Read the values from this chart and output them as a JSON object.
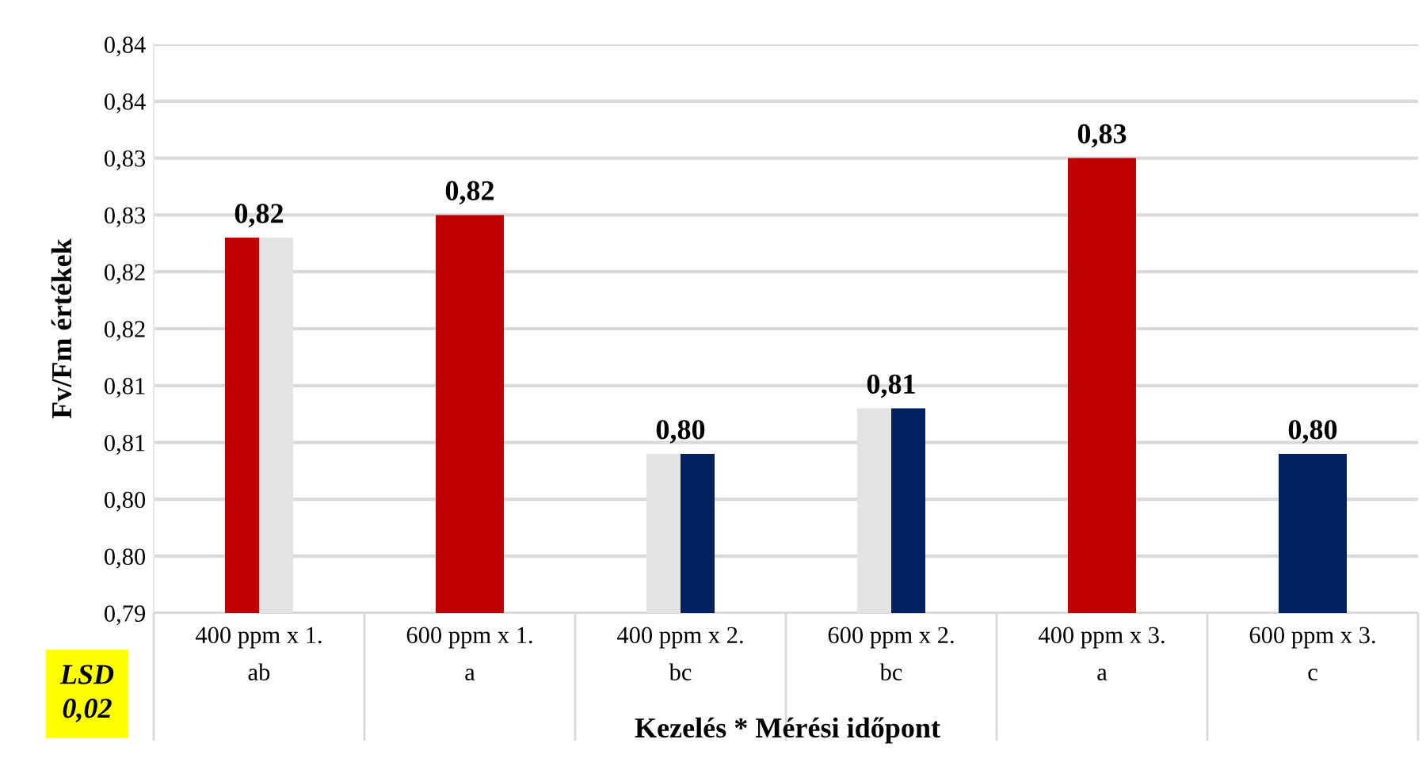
{
  "chart_data": {
    "type": "bar",
    "ylabel": "Fv/Fm értékek",
    "xlabel": "Kezelés * Mérési időpont",
    "categories": [
      "400 ppm x 1.\nab",
      "600 ppm x 1.\na",
      "400 ppm x 2.\nbc",
      "600 ppm x 2.\nbc",
      "400 ppm x 3.\na",
      "600 ppm x 3.\nc"
    ],
    "series": [
      {
        "color": "#c00000",
        "values": [
          0.823,
          0.825,
          null,
          null,
          0.83,
          null
        ],
        "value_labels": [
          "0,82",
          "0,82",
          null,
          null,
          "0,83",
          null
        ]
      },
      {
        "color": "#e3e3e3",
        "values": [
          0.823,
          null,
          0.804,
          0.808,
          null,
          null
        ],
        "value_labels": [
          null,
          null,
          null,
          null,
          null,
          null
        ]
      },
      {
        "color": "#002060",
        "values": [
          null,
          null,
          0.804,
          0.808,
          null,
          0.804
        ],
        "value_labels": [
          null,
          null,
          "0,80",
          "0,81",
          null,
          "0,80"
        ]
      }
    ],
    "ylim": [
      0.79,
      0.84
    ],
    "yticks": [
      {
        "value": 0.79,
        "label": "0,79"
      },
      {
        "value": 0.795,
        "label": "0,80"
      },
      {
        "value": 0.8,
        "label": "0,80"
      },
      {
        "value": 0.805,
        "label": "0,81"
      },
      {
        "value": 0.81,
        "label": "0,81"
      },
      {
        "value": 0.815,
        "label": "0,82"
      },
      {
        "value": 0.82,
        "label": "0,82"
      },
      {
        "value": 0.825,
        "label": "0,83"
      },
      {
        "value": 0.83,
        "label": "0,83"
      },
      {
        "value": 0.835,
        "label": "0,84"
      },
      {
        "value": 0.84,
        "label": "0,84"
      }
    ],
    "grid": "y",
    "annotations": [
      "LSD\n0,02"
    ]
  }
}
